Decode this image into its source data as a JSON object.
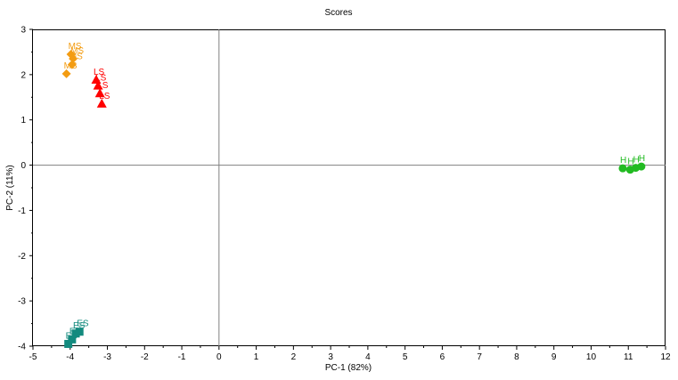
{
  "chart_data": {
    "type": "scatter",
    "title": "Scores",
    "xlabel": "PC-1 (82%)",
    "ylabel": "PC-2 (11%)",
    "xlim": [
      -5,
      12
    ],
    "ylim": [
      -4,
      3
    ],
    "x_ticks": [
      "-5",
      "-4",
      "-3",
      "-2",
      "-1",
      "0",
      "1",
      "2",
      "3",
      "4",
      "5",
      "6",
      "7",
      "8",
      "9",
      "10",
      "11",
      "12"
    ],
    "y_ticks": [
      "3",
      "2",
      "1",
      "0",
      "-1",
      "-2",
      "-3",
      "-4"
    ],
    "zero_lines": true,
    "grid": false,
    "series": [
      {
        "color": "#F39C12",
        "marker": "diamond",
        "points": [
          {
            "x": -4.1,
            "y": 2.02,
            "label": "MS"
          },
          {
            "x": -3.95,
            "y": 2.22,
            "label": "MS"
          },
          {
            "x": -3.92,
            "y": 2.35,
            "label": "MS"
          },
          {
            "x": -3.98,
            "y": 2.45,
            "label": "MS"
          }
        ]
      },
      {
        "color": "#FF0000",
        "marker": "triangle",
        "points": [
          {
            "x": -3.3,
            "y": 1.88,
            "label": "LS"
          },
          {
            "x": -3.25,
            "y": 1.75,
            "label": "LS"
          },
          {
            "x": -3.2,
            "y": 1.58,
            "label": "LS"
          },
          {
            "x": -3.15,
            "y": 1.35,
            "label": "LS"
          }
        ]
      },
      {
        "color": "#22BB22",
        "marker": "circle",
        "points": [
          {
            "x": 10.85,
            "y": -0.07,
            "label": "H"
          },
          {
            "x": 11.05,
            "y": -0.1,
            "label": "H"
          },
          {
            "x": 11.2,
            "y": -0.06,
            "label": "H"
          },
          {
            "x": 11.35,
            "y": -0.03,
            "label": "H"
          }
        ]
      },
      {
        "color": "#138A7E",
        "marker": "square",
        "points": [
          {
            "x": -4.05,
            "y": -3.95,
            "label": "ES"
          },
          {
            "x": -3.95,
            "y": -3.85,
            "label": "ES"
          },
          {
            "x": -3.85,
            "y": -3.72,
            "label": "ES"
          },
          {
            "x": -3.75,
            "y": -3.68,
            "label": "ES"
          }
        ]
      }
    ]
  }
}
